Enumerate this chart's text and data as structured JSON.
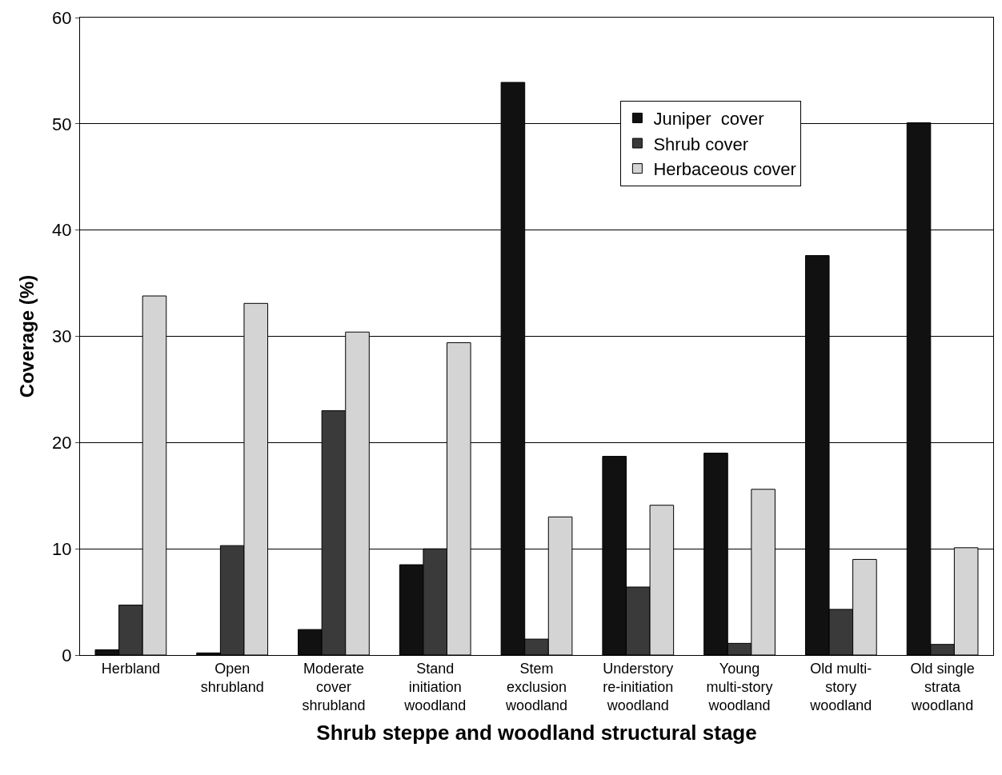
{
  "chart_data": {
    "type": "bar",
    "xlabel": "Shrub steppe and woodland structural stage",
    "ylabel": "Coverage (%)",
    "categories": [
      "Herbland",
      "Open\nshrubland",
      "Moderate\ncover\nshrubland",
      "Stand\ninitiation\nwoodland",
      "Stem\nexclusion\nwoodland",
      "Understory\nre-initiation\nwoodland",
      "Young\nmulti-story\nwoodland",
      "Old multi-\nstory\nwoodland",
      "Old single\nstrata\nwoodland"
    ],
    "series": [
      {
        "name": "Juniper  cover",
        "color": "#111111",
        "values": [
          0.5,
          0.2,
          2.4,
          8.5,
          53.9,
          18.7,
          19.0,
          37.6,
          50.1
        ]
      },
      {
        "name": "Shrub cover",
        "color": "#3a3a3a",
        "values": [
          4.7,
          10.3,
          23.0,
          10.0,
          1.5,
          6.4,
          1.1,
          4.3,
          1.0
        ]
      },
      {
        "name": "Herbaceous cover",
        "color": "#d4d4d4",
        "values": [
          33.8,
          33.1,
          30.4,
          29.4,
          13.0,
          14.1,
          15.6,
          9.0,
          10.1
        ]
      }
    ],
    "ylim": [
      0,
      60
    ],
    "yticks": [
      0,
      10,
      20,
      30,
      40,
      50,
      60
    ],
    "grid": "y",
    "legend": "top right"
  }
}
